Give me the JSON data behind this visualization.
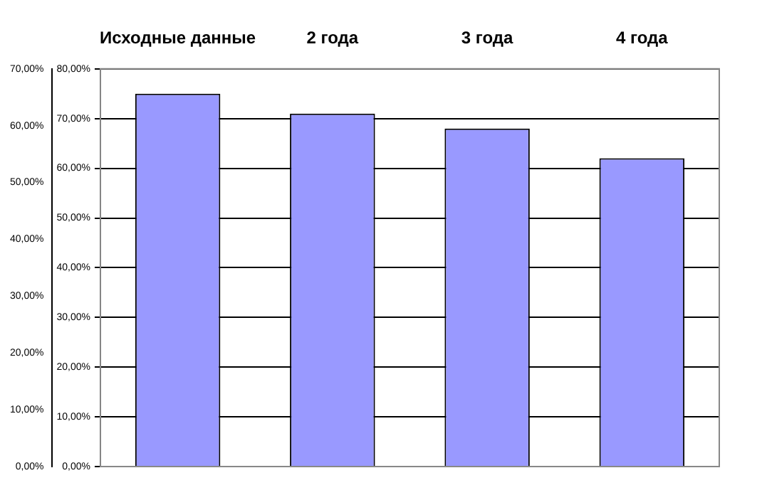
{
  "chart_data": {
    "type": "bar",
    "categories": [
      "Исходные данные",
      "2 года",
      "3 года",
      "4 года"
    ],
    "values": [
      75,
      71,
      68,
      62
    ],
    "color": "#9999ff",
    "ylim": [
      0,
      80
    ],
    "yticks": [
      {
        "value": 0,
        "label": "0,00%"
      },
      {
        "value": 10,
        "label": "10,00%"
      },
      {
        "value": 20,
        "label": "20,00%"
      },
      {
        "value": 30,
        "label": "30,00%"
      },
      {
        "value": 40,
        "label": "40,00%"
      },
      {
        "value": 50,
        "label": "50,00%"
      },
      {
        "value": 60,
        "label": "60,00%"
      },
      {
        "value": 70,
        "label": "70,00%"
      },
      {
        "value": 80,
        "label": "80,00%"
      }
    ],
    "y2lim": [
      0,
      70
    ],
    "y2ticks": [
      {
        "value": 0,
        "label": "0,00%"
      },
      {
        "value": 10,
        "label": "10,00%"
      },
      {
        "value": 20,
        "label": "20,00%"
      },
      {
        "value": 30,
        "label": "30,00%"
      },
      {
        "value": 40,
        "label": "40,00%"
      },
      {
        "value": 50,
        "label": "50,00%"
      },
      {
        "value": 60,
        "label": "60,00%"
      },
      {
        "value": 70,
        "label": "70,00%"
      }
    ],
    "grid": "y",
    "legend": false
  }
}
